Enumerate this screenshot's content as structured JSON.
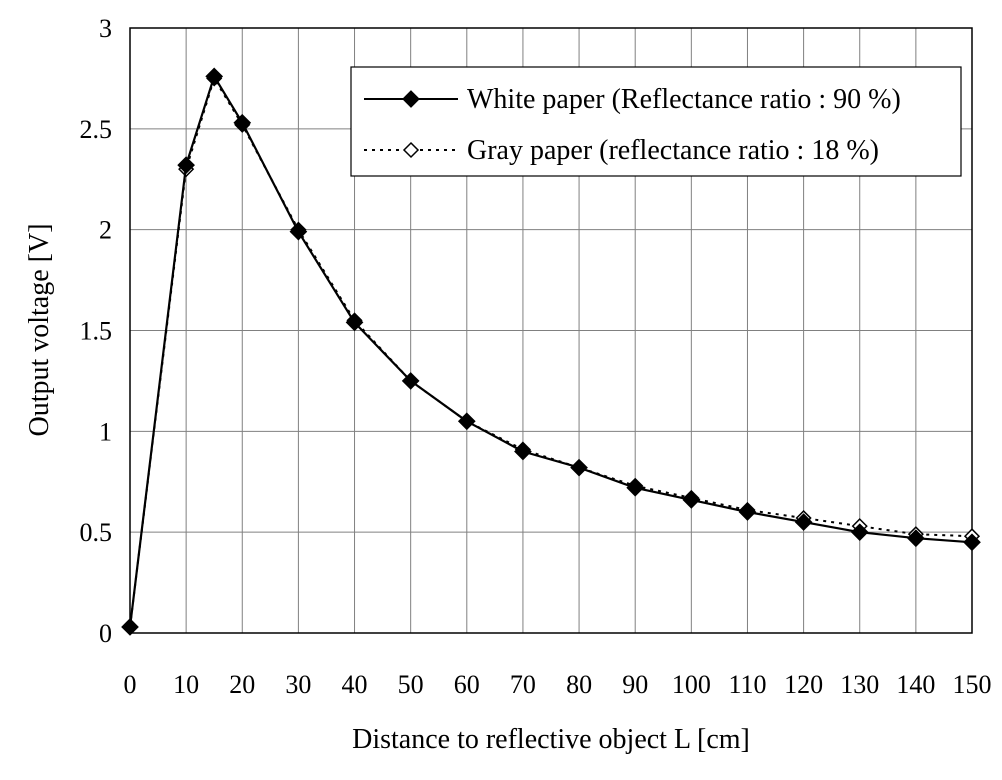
{
  "chart_data": {
    "type": "line",
    "xlabel": "Distance to reflective object L [cm]",
    "ylabel": "Output voltage [V]",
    "xlim": [
      0,
      150
    ],
    "ylim": [
      0,
      3
    ],
    "x_tick_labels": [
      "0",
      "10",
      "20",
      "30",
      "40",
      "50",
      "60",
      "70",
      "80",
      "90",
      "100",
      "110",
      "120",
      "130",
      "140",
      "150"
    ],
    "y_tick_labels": [
      "0",
      "0.5",
      "1",
      "1.5",
      "2",
      "2.5",
      "3"
    ],
    "grid": true,
    "legend_position": "top-right",
    "series": [
      {
        "name": "White paper (Reflectance ratio : 90 %)",
        "line_style": "solid",
        "marker": "filled-diamond",
        "color": "#000000",
        "x": [
          0,
          10,
          15,
          20,
          30,
          40,
          50,
          60,
          70,
          80,
          90,
          100,
          110,
          120,
          130,
          140,
          150
        ],
        "y": [
          0.03,
          2.32,
          2.76,
          2.53,
          1.99,
          1.54,
          1.25,
          1.05,
          0.9,
          0.82,
          0.72,
          0.66,
          0.6,
          0.55,
          0.5,
          0.47,
          0.45
        ]
      },
      {
        "name": "Gray paper (reflectance ratio : 18 %)",
        "line_style": "dotted",
        "marker": "open-diamond",
        "color": "#000000",
        "x": [
          0,
          10,
          15,
          20,
          30,
          40,
          50,
          60,
          70,
          80,
          90,
          100,
          110,
          120,
          130,
          140,
          150
        ],
        "y": [
          0.03,
          2.3,
          2.75,
          2.52,
          2.0,
          1.55,
          1.25,
          1.05,
          0.91,
          0.82,
          0.73,
          0.67,
          0.61,
          0.57,
          0.53,
          0.49,
          0.48
        ]
      }
    ]
  }
}
